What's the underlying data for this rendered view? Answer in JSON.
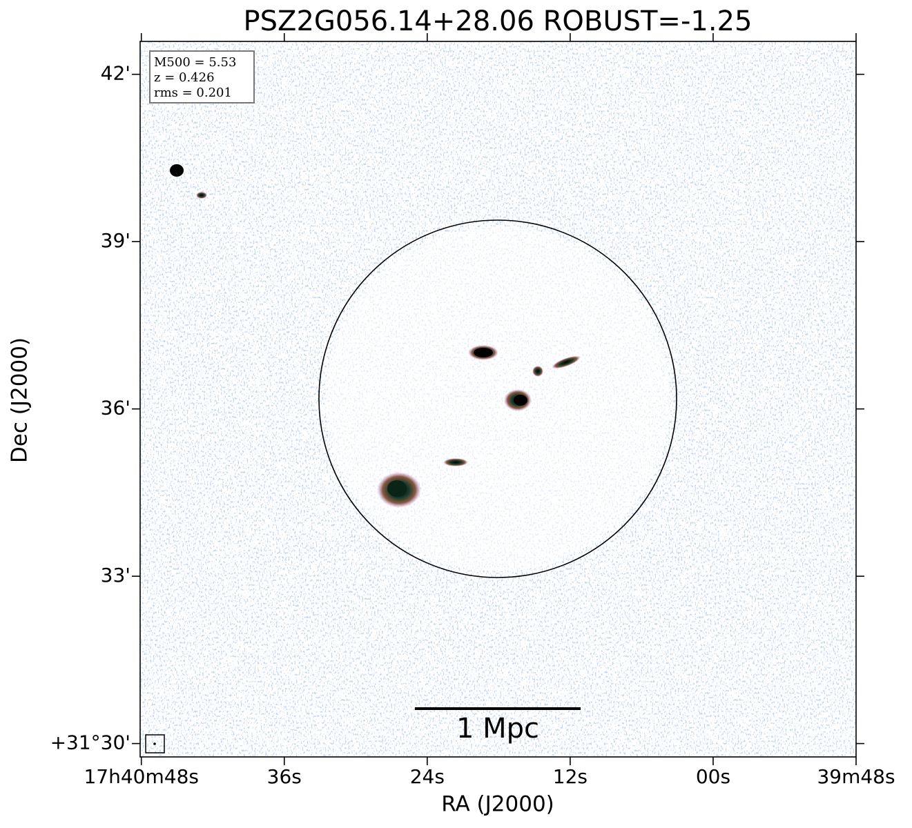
{
  "chart_data": {
    "type": "image",
    "title": "PSZ2G056.14+28.06 ROBUST=-1.25",
    "xlabel": "RA (J2000)",
    "ylabel": "Dec (J2000)",
    "xlim": [
      48.1,
      -12.0
    ],
    "xticks": [
      {
        "value": 48,
        "label": "17h40m48s"
      },
      {
        "value": 36,
        "label": "36s"
      },
      {
        "value": 24,
        "label": "24s"
      },
      {
        "value": 12,
        "label": "12s"
      },
      {
        "value": 0,
        "label": "00s"
      },
      {
        "value": -12,
        "label": "39m48s"
      }
    ],
    "ylim": [
      29.76,
      42.59
    ],
    "yticks": [
      {
        "value": 42,
        "label": "42'"
      },
      {
        "value": 39,
        "label": "39'"
      },
      {
        "value": 36,
        "label": "36'"
      },
      {
        "value": 33,
        "label": "33'"
      },
      {
        "value": 30,
        "label": "+31°30'"
      }
    ],
    "annotations": [
      "M500 = 5.53",
      "z = 0.426",
      "rms = 0.201"
    ],
    "scalebar_label": "1 Mpc"
  }
}
